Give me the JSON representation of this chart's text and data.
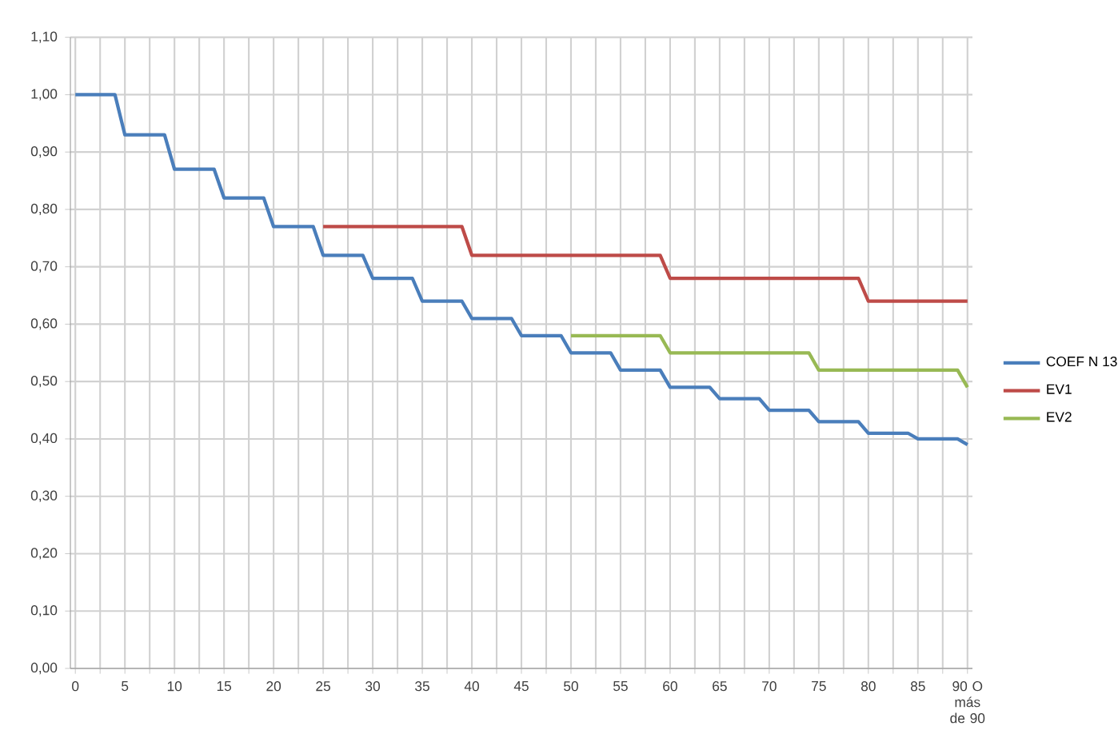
{
  "chart_data": {
    "type": "line",
    "xlim": [
      -0.5,
      90.5
    ],
    "ylim": [
      0,
      1.1
    ],
    "xticks": [
      0,
      {
        "value": 2.5,
        "label": null
      },
      5,
      {
        "value": 7.5,
        "label": null
      },
      10,
      {
        "value": 12.5,
        "label": null
      },
      15,
      {
        "value": 17.5,
        "label": null
      },
      20,
      {
        "value": 22.5,
        "label": null
      },
      25,
      {
        "value": 27.5,
        "label": null
      },
      30,
      {
        "value": 32.5,
        "label": null
      },
      35,
      {
        "value": 37.5,
        "label": null
      },
      40,
      {
        "value": 42.5,
        "label": null
      },
      45,
      {
        "value": 47.5,
        "label": null
      },
      50,
      {
        "value": 52.5,
        "label": null
      },
      55,
      {
        "value": 57.5,
        "label": null
      },
      60,
      {
        "value": 62.5,
        "label": null
      },
      65,
      {
        "value": 67.5,
        "label": null
      },
      70,
      {
        "value": 72.5,
        "label": null
      },
      75,
      {
        "value": 77.5,
        "label": null
      },
      80,
      {
        "value": 82.5,
        "label": null
      },
      85,
      {
        "value": 87.5,
        "label": null
      },
      {
        "value": 90,
        "label": "90 O más de 90"
      }
    ],
    "yticks": [
      {
        "value": 0,
        "label": "0,00"
      },
      {
        "value": 0.1,
        "label": "0,10"
      },
      {
        "value": 0.2,
        "label": "0,20"
      },
      {
        "value": 0.3,
        "label": "0,30"
      },
      {
        "value": 0.4,
        "label": "0,40"
      },
      {
        "value": 0.5,
        "label": "0,50"
      },
      {
        "value": 0.6,
        "label": "0,60"
      },
      {
        "value": 0.7,
        "label": "0,70"
      },
      {
        "value": 0.8,
        "label": "0,80"
      },
      {
        "value": 0.9,
        "label": "0,90"
      },
      {
        "value": 1.0,
        "label": "1,00"
      },
      {
        "value": 1.1,
        "label": "1,10"
      }
    ],
    "grid": true,
    "legend": "right",
    "line_style": "solid",
    "series": [
      {
        "name": "COEF N 13",
        "color": "#4a7ebb",
        "x": [
          0,
          4,
          5,
          9,
          10,
          14,
          15,
          19,
          20,
          24,
          25,
          29,
          30,
          34,
          35,
          39,
          40,
          44,
          45,
          49,
          50,
          54,
          55,
          59,
          60,
          64,
          65,
          69,
          70,
          74,
          75,
          79,
          80,
          84,
          85,
          89,
          90
        ],
        "values": [
          1.0,
          1.0,
          0.93,
          0.93,
          0.87,
          0.87,
          0.82,
          0.82,
          0.77,
          0.77,
          0.72,
          0.72,
          0.68,
          0.68,
          0.64,
          0.64,
          0.61,
          0.61,
          0.58,
          0.58,
          0.55,
          0.55,
          0.52,
          0.52,
          0.49,
          0.49,
          0.47,
          0.47,
          0.45,
          0.45,
          0.43,
          0.43,
          0.41,
          0.41,
          0.4,
          0.4,
          0.39
        ]
      },
      {
        "name": "EV1",
        "color": "#be4b48",
        "x": [
          25,
          39,
          40,
          59,
          60,
          79,
          80,
          90
        ],
        "values": [
          0.77,
          0.77,
          0.72,
          0.72,
          0.68,
          0.68,
          0.64,
          0.64
        ]
      },
      {
        "name": "EV2",
        "color": "#98b954",
        "x": [
          50,
          59,
          60,
          74,
          75,
          89,
          90
        ],
        "values": [
          0.58,
          0.58,
          0.55,
          0.55,
          0.52,
          0.52,
          0.49
        ]
      }
    ]
  }
}
